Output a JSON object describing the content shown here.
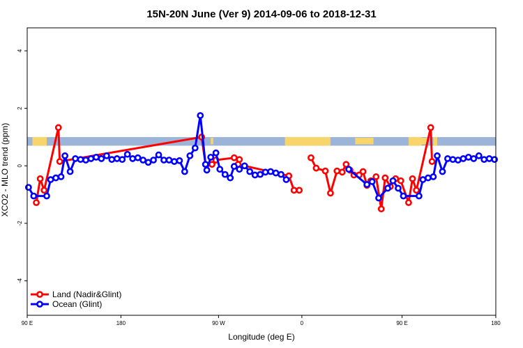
{
  "chart_data": {
    "type": "line",
    "title": "15N-20N June (Ver 9)   2014-09-06 to 2018-12-31",
    "xlabel": "Longitude (deg E)",
    "ylabel": "XCO2 - MLO trend (ppm)",
    "xlim": [
      0,
      360
    ],
    "ylim": [
      -5.2,
      4.8
    ],
    "x_ticks": [
      {
        "x": 0,
        "label": "90 E"
      },
      {
        "x": 72,
        "label": "180"
      },
      {
        "x": 147,
        "label": "90 W"
      },
      {
        "x": 211,
        "label": "0"
      },
      {
        "x": 288,
        "label": "90 E"
      },
      {
        "x": 360,
        "label": "180"
      }
    ],
    "y_ticks": [
      -4,
      -2,
      0,
      2,
      4
    ],
    "legend_position": "bottom-left",
    "colors": {
      "land": "#ff0000",
      "ocean": "#0000ff",
      "band_ocean": "#9db4d9",
      "band_land": "#f7d56a"
    },
    "land_mask_band": {
      "y_range": [
        0.7,
        1.0
      ],
      "land_segments": [
        [
          4,
          15
        ],
        [
          141,
          143
        ],
        [
          198,
          233
        ],
        [
          252,
          266
        ],
        [
          293,
          303
        ],
        [
          302,
          308
        ],
        [
          312,
          315
        ]
      ]
    },
    "series": [
      {
        "name": "Land (Nadir&Glint)",
        "color": "#ff0000",
        "points": [
          [
            7,
            -1.28
          ],
          [
            10,
            -0.45
          ],
          [
            13,
            -0.85
          ],
          [
            24,
            1.33
          ],
          [
            25,
            0.15
          ],
          [
            134,
            1.0
          ],
          [
            137,
            0.05
          ],
          [
            142,
            0.05
          ],
          [
            145,
            0.2
          ],
          [
            159,
            0.28
          ],
          [
            163,
            0.22
          ],
          [
            162,
            0.05
          ],
          [
            201,
            -0.35
          ],
          [
            205,
            -0.85
          ],
          [
            209,
            -0.85
          ],
          null,
          [
            218,
            0.28
          ],
          [
            222,
            -0.08
          ],
          [
            229,
            -0.18
          ],
          [
            233,
            -0.95
          ],
          [
            238,
            -0.18
          ],
          [
            242,
            -0.22
          ],
          [
            245,
            0.05
          ],
          [
            248,
            -0.15
          ],
          [
            251,
            -0.32
          ],
          [
            255,
            -0.32
          ],
          [
            258,
            -0.2
          ],
          [
            261,
            -0.68
          ],
          [
            264,
            -0.52
          ],
          [
            268,
            -0.38
          ],
          [
            272,
            -1.5
          ],
          [
            275,
            -0.42
          ],
          [
            279,
            -0.72
          ],
          [
            283,
            -0.45
          ],
          [
            287,
            -0.52
          ],
          [
            293,
            -1.28
          ],
          [
            296,
            -0.45
          ],
          [
            299,
            -0.85
          ],
          [
            310,
            1.33
          ],
          [
            311,
            0.15
          ]
        ]
      },
      {
        "name": "Ocean (Glint)",
        "color": "#0000ff",
        "points": [
          [
            1,
            -0.75
          ],
          [
            5,
            -1.05
          ],
          [
            15,
            -1.05
          ],
          [
            18,
            -0.48
          ],
          [
            22,
            -0.42
          ],
          [
            26,
            -0.38
          ],
          [
            29,
            0.35
          ],
          [
            33,
            -0.2
          ],
          [
            37,
            0.25
          ],
          [
            41,
            0.22
          ],
          [
            45,
            0.2
          ],
          [
            49,
            0.25
          ],
          [
            53,
            0.3
          ],
          [
            57,
            0.25
          ],
          [
            61,
            0.35
          ],
          [
            65,
            0.22
          ],
          [
            69,
            0.25
          ],
          [
            73,
            0.22
          ],
          [
            77,
            0.4
          ],
          [
            81,
            0.25
          ],
          [
            85,
            0.28
          ],
          [
            89,
            0.2
          ],
          [
            93,
            0.12
          ],
          [
            97,
            0.2
          ],
          [
            101,
            0.38
          ],
          [
            105,
            0.2
          ],
          [
            109,
            0.2
          ],
          [
            113,
            0.15
          ],
          [
            117,
            0.18
          ],
          [
            121,
            -0.2
          ],
          [
            125,
            0.35
          ],
          [
            129,
            0.62
          ],
          [
            133,
            1.75
          ],
          [
            137,
            0.05
          ],
          [
            138,
            -0.15
          ],
          [
            141,
            0.3
          ],
          [
            145,
            0.45
          ],
          [
            148,
            -0.12
          ],
          [
            152,
            -0.3
          ],
          [
            156,
            -0.42
          ],
          [
            159,
            -0.02
          ],
          [
            163,
            -0.12
          ],
          [
            167,
            0.0
          ],
          [
            171,
            -0.2
          ],
          [
            175,
            -0.32
          ],
          [
            179,
            -0.3
          ],
          [
            183,
            -0.22
          ],
          [
            187,
            -0.2
          ],
          [
            191,
            -0.25
          ],
          [
            195,
            -0.3
          ],
          [
            199,
            -0.48
          ],
          null,
          [
            247,
            -0.12
          ],
          [
            261,
            -0.65
          ],
          [
            265,
            -0.55
          ],
          [
            270,
            -1.12
          ],
          [
            277,
            -0.78
          ],
          [
            281,
            -0.52
          ],
          [
            285,
            -0.78
          ],
          [
            289,
            -1.05
          ],
          [
            301,
            -1.05
          ],
          [
            304,
            -0.48
          ],
          [
            308,
            -0.42
          ],
          [
            312,
            -0.38
          ],
          [
            315,
            0.35
          ],
          [
            319,
            -0.2
          ],
          [
            323,
            0.25
          ],
          [
            327,
            0.22
          ],
          [
            331,
            0.2
          ],
          [
            335,
            0.25
          ],
          [
            339,
            0.3
          ],
          [
            343,
            0.25
          ],
          [
            347,
            0.35
          ],
          [
            351,
            0.22
          ],
          [
            355,
            0.25
          ],
          [
            359,
            0.22
          ]
        ]
      }
    ]
  }
}
